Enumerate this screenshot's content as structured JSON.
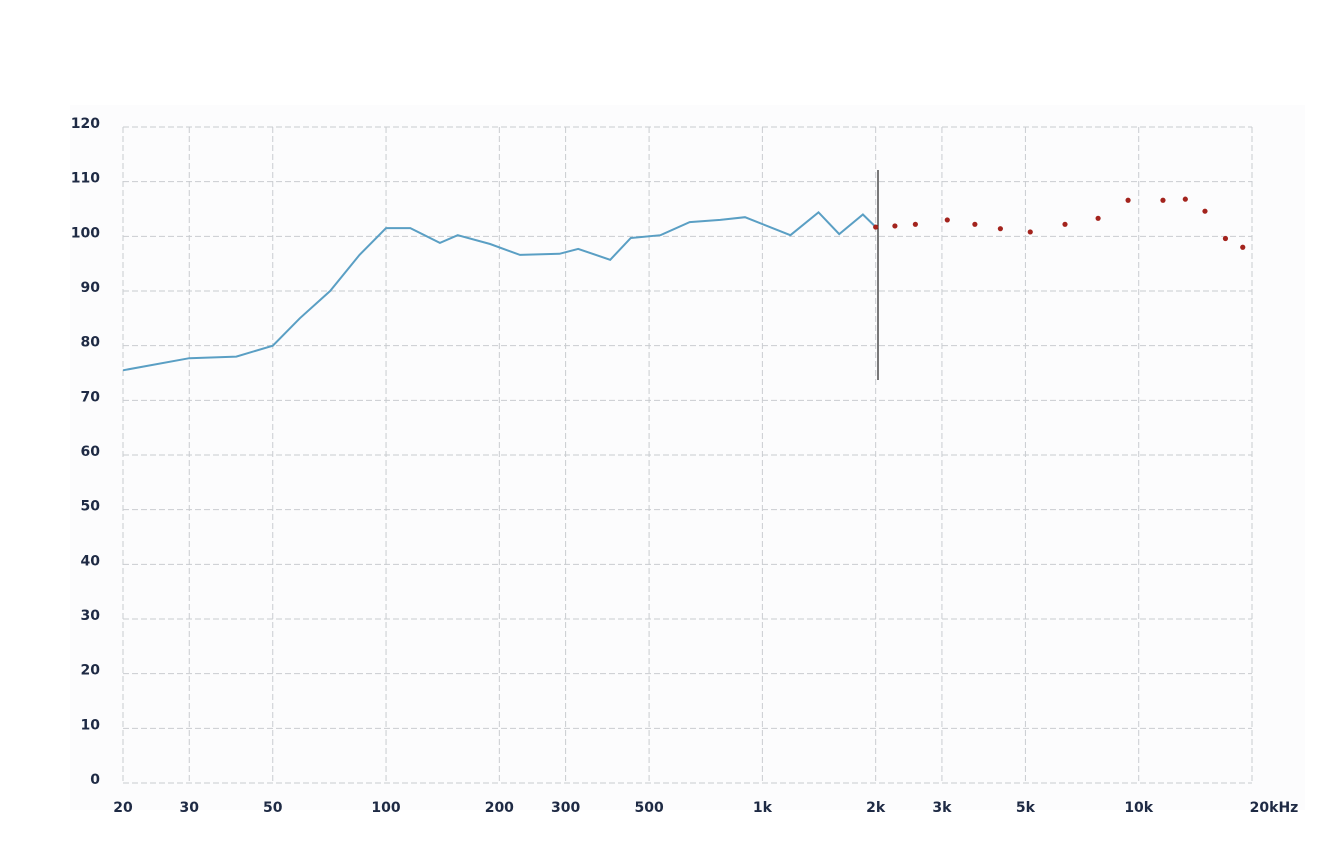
{
  "chart_data": {
    "type": "line",
    "xscale": "log",
    "grid": true,
    "xlim": [
      20,
      20000
    ],
    "ylim": [
      0,
      120
    ],
    "xticks": [
      20,
      30,
      50,
      100,
      200,
      300,
      500,
      {
        "value": 1000,
        "label": "1k"
      },
      {
        "value": 2000,
        "label": "2k"
      },
      {
        "value": 3000,
        "label": "3k"
      },
      {
        "value": 5000,
        "label": "5k"
      },
      {
        "value": 10000,
        "label": "10k"
      },
      {
        "value": 20000,
        "label": "20kHz"
      }
    ],
    "yticks": [
      0,
      10,
      20,
      30,
      40,
      50,
      60,
      70,
      80,
      90,
      100,
      110,
      120
    ],
    "series": [
      {
        "color": "#5a9fc4",
        "style": "solid",
        "x": [
          20,
          30,
          40,
          50,
          59,
          71,
          85,
          100,
          116,
          139,
          155,
          189,
          227,
          289,
          324,
          394,
          447,
          536,
          641,
          773,
          899,
          1187,
          1410,
          1600,
          1850,
          2000
        ],
        "values": [
          75.5,
          77.7,
          78,
          80,
          85,
          90,
          96.6,
          101.5,
          101.5,
          98.8,
          100.2,
          98.6,
          96.6,
          96.8,
          97.7,
          95.7,
          99.7,
          100.2,
          102.6,
          103,
          103.5,
          100.2,
          104.4,
          100.4,
          104,
          101.7
        ]
      },
      {
        "color": "#a3231d",
        "style": "dots",
        "x": [
          2000,
          2250,
          2550,
          3100,
          3670,
          4290,
          5150,
          6370,
          7800,
          9370,
          11600,
          13300,
          15000,
          17000,
          18900
        ],
        "values": [
          101.7,
          101.9,
          102.2,
          103,
          102.2,
          101.4,
          100.8,
          102.2,
          103.3,
          106.6,
          106.6,
          106.8,
          104.6,
          99.6,
          98
        ]
      }
    ]
  }
}
